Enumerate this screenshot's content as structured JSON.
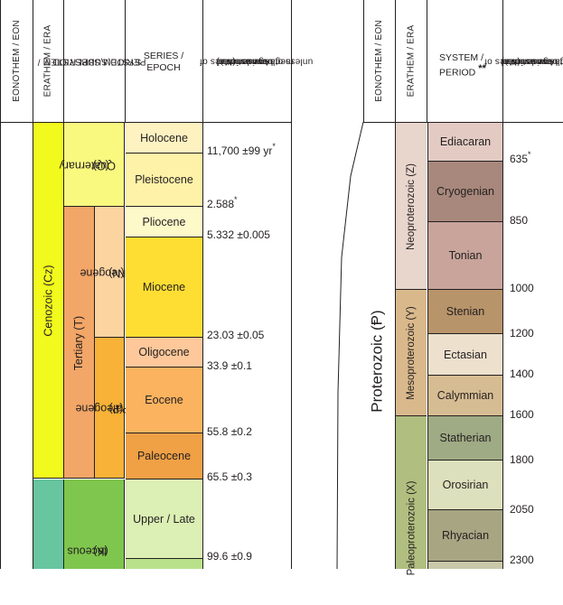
{
  "left": {
    "headers": {
      "eonothem": "EONOTHEM / EON",
      "erathem": "ERATHEM / ERA",
      "system_l1": "SYSTEM,SUBSYSTEM /",
      "system_l2": "PERIOD,SUBPERIOD",
      "series_l1": "SERIES /",
      "series_l2": "EPOCH",
      "age_l1": "Age estimates of",
      "age_l2": "boundaries in",
      "age_l3": "mega-annum (Ma)",
      "age_l4": "unless otherwise noted"
    },
    "eras": {
      "cenozoic": "Cenozoic (Cz)",
      "tertiary": "Tertiary (T)",
      "mesozoic_partial": "taceous\n(K)"
    },
    "periods": {
      "quaternary_l1": "Quaternary",
      "quaternary_l2": "(Q)",
      "neogene_l1": "Neogene",
      "neogene_l2": "(N)",
      "paleogene_l1": "Paleogene",
      "paleogene_l2": "(Ꝑ)",
      "cretaceous_l1": "taceous",
      "cretaceous_l2": "(K)"
    },
    "epochs": {
      "holocene": "Holocene",
      "pleistocene": "Pleistocene",
      "pliocene": "Pliocene",
      "miocene": "Miocene",
      "oligocene": "Oligocene",
      "eocene": "Eocene",
      "paleocene": "Paleocene",
      "upper_late": "Upper / Late"
    },
    "ages": {
      "a1": "11,700 ±99 yr",
      "a1_mark": "*",
      "a2": "2.588",
      "a2_mark": "*",
      "a3": "5.332 ±0.005",
      "a4": "23.03 ±0.05",
      "a5": "33.9 ±0.1",
      "a6": "55.8 ±0.2",
      "a7": "65.5 ±0.3",
      "a8": "99.6 ±0.9"
    }
  },
  "right": {
    "headers": {
      "eonothem": "EONOTHEM / EON",
      "erathem": "ERATHEM / ERA",
      "system_l1": "SYSTEM /",
      "system_l2": "PERIOD",
      "system_mark": "**",
      "age_l1": "Age estimates of",
      "age_l2": "boundaries in",
      "age_l3": "mega-annum (Ma)",
      "age_l4": "unless otherwise noted"
    },
    "eon": "Proterozoic (Ᵽ)",
    "eras": {
      "neoproterozoic": "Neoproterozoic (Z)",
      "mesoproterozoic": "Mesoproterozoic (Y)",
      "paleoproterozoic": "Paleoproterozoic (X)"
    },
    "periods": {
      "ediacaran": "Ediacaran",
      "cryogenian": "Cryogenian",
      "tonian": "Tonian",
      "stenian": "Stenian",
      "ectasian": "Ectasian",
      "calymmian": "Calymmian",
      "statherian": "Statherian",
      "orosirian": "Orosirian",
      "rhyacian": "Rhyacian"
    },
    "ages": {
      "a635": "635",
      "a635_mark": "*",
      "a850": "850",
      "a1000": "1000",
      "a1200": "1200",
      "a1400": "1400",
      "a1600": "1600",
      "a1800": "1800",
      "a2050": "2050",
      "a2300": "2300"
    }
  },
  "colors": {
    "cenozoic": "#f2f91d",
    "quaternary": "#f9f97f",
    "tertiary": "#f2a667",
    "neogene": "#fcd4a0",
    "paleogene": "#f7b237",
    "holocene": "#fef2c1",
    "pleistocene": "#fef2a8",
    "pliocene": "#fef9c9",
    "miocene": "#fede33",
    "oligocene": "#fec89a",
    "eocene": "#fcb35f",
    "paleocene": "#f0a045",
    "mesozoic": "#67c5a0",
    "cretaceous": "#7fc64e",
    "upper_cret": "#a6d974",
    "neoproterozoic": "#e8d5cc",
    "mesoproterozoic": "#d9b98c",
    "paleoproterozoic": "#b0bf80"
  }
}
